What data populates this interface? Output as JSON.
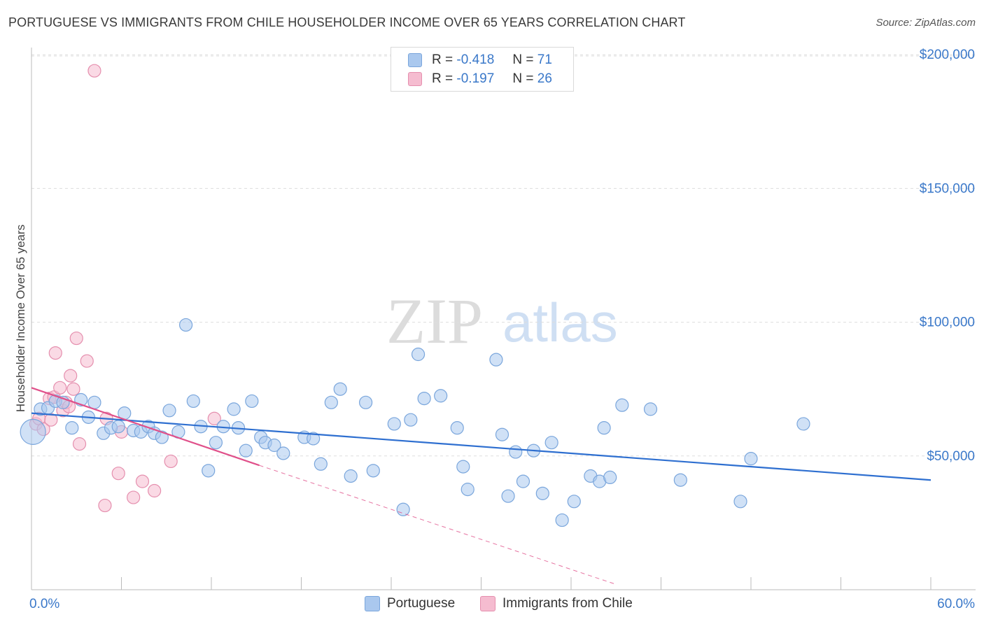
{
  "title": "PORTUGUESE VS IMMIGRANTS FROM CHILE HOUSEHOLDER INCOME OVER 65 YEARS CORRELATION CHART",
  "source": "Source: ZipAtlas.com",
  "watermark": {
    "zip": "ZIP",
    "atlas": "atlas"
  },
  "colors": {
    "blue_fill": "#aac8ee",
    "blue_stroke": "#7aa6dc",
    "blue_line": "#2e6fd0",
    "pink_fill": "#f5bcd0",
    "pink_stroke": "#e58fae",
    "pink_line": "#e0508a",
    "axis_label": "#3a78c9",
    "grid": "#dddddd"
  },
  "legend_top": {
    "r_label": "R =",
    "n_label": "N =",
    "rows": [
      {
        "r": "-0.418",
        "n": "71",
        "color": "#aac8ee",
        "stroke": "#7aa6dc"
      },
      {
        "r": "-0.197",
        "n": "26",
        "color": "#f5bcd0",
        "stroke": "#e58fae"
      }
    ]
  },
  "legend_bottom": [
    {
      "label": "Portuguese",
      "color": "#aac8ee",
      "stroke": "#7aa6dc"
    },
    {
      "label": "Immigrants from Chile",
      "color": "#f5bcd0",
      "stroke": "#e58fae"
    }
  ],
  "chart_data": {
    "type": "scatter",
    "title": "PORTUGUESE VS IMMIGRANTS FROM CHILE HOUSEHOLDER INCOME OVER 65 YEARS CORRELATION CHART",
    "xlabel": "",
    "ylabel": "Householder Income Over 65 years",
    "xlim": [
      0,
      60
    ],
    "ylim": [
      0,
      210000
    ],
    "x_tick_labels": [
      "0.0%",
      "60.0%"
    ],
    "y_ticks": [
      {
        "value": 50000,
        "label": "$50,000"
      },
      {
        "value": 100000,
        "label": "$100,000"
      },
      {
        "value": 150000,
        "label": "$150,000"
      },
      {
        "value": 200000,
        "label": "$200,000"
      }
    ],
    "series": [
      {
        "name": "Portuguese",
        "r": -0.418,
        "n": 71,
        "trend": {
          "x0": 0,
          "y0": 66000,
          "x1": 60,
          "y1": 41000
        },
        "points": [
          [
            0.1,
            59000,
            18
          ],
          [
            0.6,
            67500,
            9
          ],
          [
            1.1,
            68000,
            9
          ],
          [
            1.6,
            70500,
            9
          ],
          [
            2.1,
            70000,
            9
          ],
          [
            2.7,
            60500,
            9
          ],
          [
            3.3,
            71000,
            9
          ],
          [
            3.8,
            64500,
            9
          ],
          [
            4.2,
            70000,
            9
          ],
          [
            4.8,
            58500,
            9
          ],
          [
            5.3,
            60500,
            9
          ],
          [
            5.8,
            61000,
            9
          ],
          [
            6.2,
            66000,
            9
          ],
          [
            6.8,
            59500,
            9
          ],
          [
            7.3,
            59000,
            9
          ],
          [
            7.8,
            61000,
            9
          ],
          [
            8.2,
            58500,
            9
          ],
          [
            8.7,
            57000,
            9
          ],
          [
            9.2,
            67000,
            9
          ],
          [
            9.8,
            59000,
            9
          ],
          [
            10.3,
            99000,
            9
          ],
          [
            10.8,
            70500,
            9
          ],
          [
            11.3,
            61000,
            9
          ],
          [
            11.8,
            44500,
            9
          ],
          [
            12.3,
            55000,
            9
          ],
          [
            12.8,
            61000,
            9
          ],
          [
            13.5,
            67500,
            9
          ],
          [
            13.8,
            60500,
            9
          ],
          [
            14.3,
            52000,
            9
          ],
          [
            14.7,
            70500,
            9
          ],
          [
            15.3,
            57000,
            9
          ],
          [
            15.6,
            55000,
            9
          ],
          [
            16.2,
            54000,
            9
          ],
          [
            16.8,
            51000,
            9
          ],
          [
            18.2,
            57000,
            9
          ],
          [
            18.8,
            56500,
            9
          ],
          [
            19.3,
            47000,
            9
          ],
          [
            20.0,
            70000,
            9
          ],
          [
            20.6,
            75000,
            9
          ],
          [
            21.3,
            42500,
            9
          ],
          [
            22.3,
            70000,
            9
          ],
          [
            22.8,
            44500,
            9
          ],
          [
            24.2,
            62000,
            9
          ],
          [
            24.8,
            30000,
            9
          ],
          [
            25.3,
            63500,
            9
          ],
          [
            25.8,
            88000,
            9
          ],
          [
            26.2,
            71500,
            9
          ],
          [
            27.3,
            72500,
            9
          ],
          [
            28.4,
            60500,
            9
          ],
          [
            28.8,
            46000,
            9
          ],
          [
            29.1,
            37500,
            9
          ],
          [
            31.0,
            86000,
            9
          ],
          [
            31.4,
            58000,
            9
          ],
          [
            31.8,
            35000,
            9
          ],
          [
            32.3,
            51500,
            9
          ],
          [
            32.8,
            40500,
            9
          ],
          [
            33.5,
            52000,
            9
          ],
          [
            34.1,
            36000,
            9
          ],
          [
            34.7,
            55000,
            9
          ],
          [
            35.4,
            26000,
            9
          ],
          [
            36.2,
            33000,
            9
          ],
          [
            37.3,
            42500,
            9
          ],
          [
            37.9,
            40500,
            9
          ],
          [
            38.2,
            60500,
            9
          ],
          [
            38.6,
            42000,
            9
          ],
          [
            39.4,
            69000,
            9
          ],
          [
            41.3,
            67500,
            9
          ],
          [
            43.3,
            41000,
            9
          ],
          [
            47.3,
            33000,
            9
          ],
          [
            48.0,
            49000,
            9
          ],
          [
            51.5,
            62000,
            9
          ]
        ]
      },
      {
        "name": "Immigrants from Chile",
        "r": -0.197,
        "n": 26,
        "trend": {
          "x0": 0,
          "y0": 75500,
          "x1": 15.2,
          "y1": 46500
        },
        "trend_dashed": {
          "x0": 15.2,
          "y0": 46500,
          "x1": 39,
          "y1": 2000
        },
        "points": [
          [
            0.3,
            62000,
            9
          ],
          [
            0.5,
            64000,
            9
          ],
          [
            0.8,
            60000,
            9
          ],
          [
            1.2,
            71500,
            9
          ],
          [
            1.3,
            63500,
            9
          ],
          [
            1.5,
            72000,
            9
          ],
          [
            1.6,
            88500,
            9
          ],
          [
            1.9,
            75500,
            9
          ],
          [
            2.1,
            67000,
            9
          ],
          [
            2.3,
            70000,
            9
          ],
          [
            2.5,
            68500,
            9
          ],
          [
            2.6,
            80000,
            9
          ],
          [
            2.8,
            75000,
            9
          ],
          [
            3.0,
            94000,
            9
          ],
          [
            3.2,
            54500,
            9
          ],
          [
            3.7,
            85500,
            9
          ],
          [
            4.2,
            194000,
            9
          ],
          [
            4.9,
            31500,
            9
          ],
          [
            5.0,
            64000,
            9
          ],
          [
            5.8,
            43500,
            9
          ],
          [
            6.0,
            59000,
            9
          ],
          [
            6.8,
            34500,
            9
          ],
          [
            7.4,
            40500,
            9
          ],
          [
            8.2,
            37000,
            9
          ],
          [
            9.3,
            48000,
            9
          ],
          [
            12.2,
            64000,
            9
          ]
        ]
      }
    ]
  }
}
